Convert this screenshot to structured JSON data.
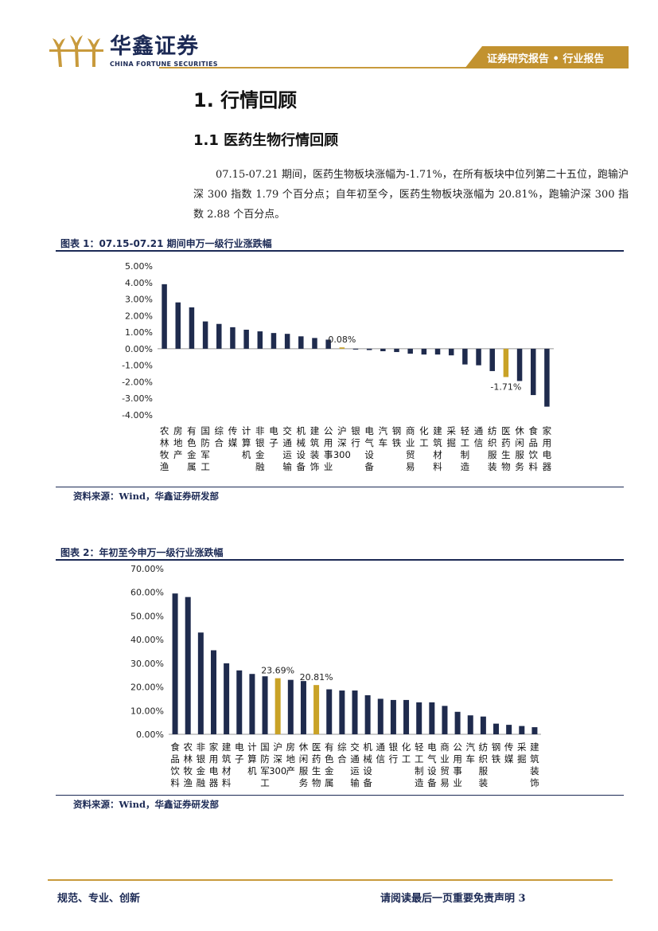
{
  "header": {
    "logo_cn": "华鑫证券",
    "logo_en": "CHINA FORTUNE SECURITIES",
    "report_tag": "证券研究报告 • 行业报告"
  },
  "section": {
    "h1": "1. 行情回顾",
    "h2": "1.1 医药生物行情回顾",
    "paragraph": "07.15-07.21 期间，医药生物板块涨幅为-1.71%，在所有板块中位列第二十五位，跑输沪深 300 指数 1.79 个百分点；自年初至今，医药生物板块涨幅为 20.81%，跑输沪深 300 指数 2.88 个百分点。"
  },
  "figures": [
    {
      "caption": "图表 1：07.15-07.21 期间申万一级行业涨跌幅",
      "source": "资料来源：Wind，华鑫证券研发部"
    },
    {
      "caption": "图表 2：年初至今申万一级行业涨跌幅",
      "source": "资料来源：Wind，华鑫证券研发部"
    }
  ],
  "colors": {
    "navy": "#1f2b4d",
    "gold": "#c9a227",
    "accent": "#c2922f"
  },
  "chart_data": [
    {
      "type": "bar",
      "categories": [
        "农林牧渔",
        "房地产",
        "有色金属",
        "国防军工",
        "综合",
        "传媒",
        "计算机",
        "非银金融",
        "电子",
        "交通运输",
        "机械设备",
        "建筑装饰",
        "公用事业",
        "沪深300",
        "银行",
        "电气设备",
        "汽车",
        "钢铁",
        "商业贸易",
        "化工",
        "建筑材料",
        "采掘",
        "轻工制造",
        "通信",
        "纺织服装",
        "医药生物",
        "休闲服务",
        "食品饮料",
        "家用电器"
      ],
      "values": [
        3.9,
        2.8,
        2.5,
        1.65,
        1.5,
        1.3,
        1.15,
        1.05,
        0.95,
        0.9,
        0.75,
        0.65,
        0.55,
        0.08,
        -0.05,
        -0.08,
        -0.15,
        -0.2,
        -0.3,
        -0.35,
        -0.35,
        -0.4,
        -0.95,
        -1.0,
        -1.35,
        -1.71,
        -1.95,
        -2.8,
        -3.5
      ],
      "highlight": [
        "沪深300",
        "医药生物"
      ],
      "annotations": [
        {
          "category": "沪深300",
          "text": "0.08%"
        },
        {
          "category": "医药生物",
          "text": "-1.71%"
        }
      ],
      "ylim": [
        -4,
        5
      ],
      "yticks": [
        "5.00%",
        "4.00%",
        "3.00%",
        "2.00%",
        "1.00%",
        "0.00%",
        "-1.00%",
        "-2.00%",
        "-3.00%",
        "-4.00%"
      ],
      "ytick_values": [
        5,
        4,
        3,
        2,
        1,
        0,
        -1,
        -2,
        -3,
        -4
      ]
    },
    {
      "type": "bar",
      "categories": [
        "食品饮料",
        "农林牧渔",
        "非银金融",
        "家用电器",
        "建筑材料",
        "电子",
        "计算机",
        "国防军工",
        "沪深300",
        "房地产",
        "休闲服务",
        "医药生物",
        "有色金属",
        "综合",
        "交通运输",
        "机械设备",
        "通信",
        "银行",
        "化工",
        "轻工制造",
        "电气设备",
        "商业贸易",
        "公用事业",
        "汽车",
        "纺织服装",
        "钢铁",
        "传媒",
        "采掘",
        "建筑装饰"
      ],
      "values": [
        59.5,
        58.0,
        43.0,
        35.5,
        30.0,
        27.0,
        25.5,
        24.5,
        23.69,
        23.0,
        22.5,
        20.81,
        19.0,
        18.5,
        18.5,
        16.5,
        15.0,
        14.5,
        14.5,
        13.5,
        13.5,
        12.0,
        9.5,
        8.0,
        7.5,
        4.5,
        4.0,
        3.5,
        3.0
      ],
      "highlight": [
        "沪深300",
        "医药生物"
      ],
      "annotations": [
        {
          "category": "沪深300",
          "text": "23.69%"
        },
        {
          "category": "医药生物",
          "text": "20.81%"
        }
      ],
      "ylim": [
        0,
        70
      ],
      "yticks": [
        "70.00%",
        "60.00%",
        "50.00%",
        "40.00%",
        "30.00%",
        "20.00%",
        "10.00%",
        "0.00%"
      ],
      "ytick_values": [
        70,
        60,
        50,
        40,
        30,
        20,
        10,
        0
      ]
    }
  ],
  "footer": {
    "left": "规范、专业、创新",
    "right": "请阅读最后一页重要免责声明 3"
  }
}
